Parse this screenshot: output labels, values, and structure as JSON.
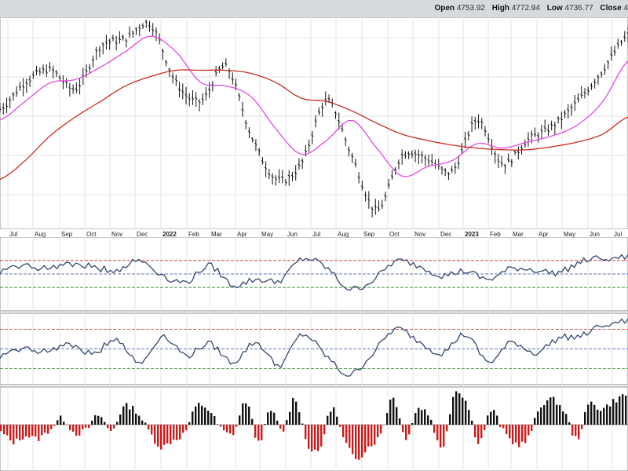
{
  "ohlc": {
    "open_label": "Open",
    "open": "4753.92",
    "high_label": "High",
    "high": "4772.94",
    "low_label": "Low",
    "low": "4736.77",
    "close_label": "Close",
    "close": "4"
  },
  "chart_data": [
    {
      "type": "line",
      "panel": "price",
      "x_tick_labels": [
        "Jul",
        "Aug",
        "Sep",
        "Oct",
        "Nov",
        "Dec",
        "2022",
        "Feb",
        "Mar",
        "Apr",
        "May",
        "Jun",
        "Jul",
        "Aug",
        "Sep",
        "Oct",
        "Nov",
        "Dec",
        "2023",
        "Feb",
        "Mar",
        "Apr",
        "May",
        "Jun",
        "Jul"
      ],
      "bold_tick_labels": [
        "2022",
        "2023"
      ],
      "x": [
        "2021-07",
        "2021-08",
        "2021-09",
        "2021-10",
        "2021-11",
        "2021-12",
        "2022-01",
        "2022-02",
        "2022-03",
        "2022-04",
        "2022-05",
        "2022-06",
        "2022-07",
        "2022-08",
        "2022-09",
        "2022-10",
        "2022-11",
        "2022-12",
        "2023-01",
        "2023-02",
        "2023-03",
        "2023-04",
        "2023-05",
        "2023-06",
        "2023-07",
        "2023-08"
      ],
      "series": [
        {
          "style": "price bars",
          "color": "#000000",
          "values": [
            4250,
            4420,
            4500,
            4380,
            4650,
            4700,
            4790,
            4420,
            4300,
            4520,
            4080,
            3800,
            3900,
            4300,
            3950,
            3600,
            3950,
            3930,
            3850,
            4180,
            3900,
            4050,
            4140,
            4300,
            4500,
            4720
          ]
        },
        {
          "style": "short moving average",
          "color": "#e04be0",
          "values": [
            4180,
            4300,
            4420,
            4440,
            4520,
            4620,
            4720,
            4620,
            4420,
            4400,
            4330,
            4120,
            3960,
            4050,
            4180,
            4000,
            3820,
            3880,
            3920,
            4030,
            4000,
            4040,
            4080,
            4150,
            4300,
            4560
          ]
        },
        {
          "style": "long moving average",
          "color": "#cc2a22",
          "values": [
            3800,
            3920,
            4080,
            4200,
            4300,
            4400,
            4460,
            4500,
            4500,
            4500,
            4480,
            4420,
            4320,
            4300,
            4240,
            4160,
            4090,
            4050,
            4020,
            4000,
            3990,
            3990,
            4010,
            4040,
            4090,
            4200
          ]
        }
      ],
      "grid": true
    },
    {
      "type": "line",
      "panel": "oscillator-1",
      "reference_lines": [
        70,
        50,
        30
      ],
      "reference_colors": [
        "#cc2a22",
        "#3344aa",
        "#2a8a2a"
      ],
      "ylim": [
        0,
        100
      ],
      "series": [
        {
          "color": "#34486e",
          "values": [
            55,
            62,
            58,
            66,
            60,
            56,
            70,
            48,
            38,
            62,
            34,
            42,
            40,
            72,
            60,
            28,
            40,
            68,
            62,
            48,
            54,
            42,
            58,
            56,
            52,
            68,
            74,
            74
          ]
        }
      ],
      "grid": true
    },
    {
      "type": "line",
      "panel": "oscillator-2",
      "reference_lines": [
        80,
        50,
        20
      ],
      "reference_colors": [
        "#cc2a22",
        "#3344aa",
        "#2a8a2a"
      ],
      "ylim": [
        0,
        100
      ],
      "series": [
        {
          "color": "#34486e",
          "values": [
            40,
            50,
            46,
            58,
            42,
            66,
            28,
            70,
            40,
            58,
            30,
            60,
            25,
            72,
            40,
            10,
            42,
            80,
            62,
            44,
            72,
            30,
            60,
            44,
            66,
            70,
            88,
            92
          ]
        }
      ],
      "grid": true
    },
    {
      "type": "bar",
      "panel": "histogram",
      "colors": {
        "positive": "#111111",
        "negative": "#cc1a1a"
      },
      "values": [
        -10,
        -22,
        -14,
        -18,
        -6,
        8,
        -10,
        -6,
        12,
        -8,
        22,
        18,
        -6,
        -28,
        -20,
        -10,
        24,
        18,
        -6,
        -10,
        30,
        -22,
        18,
        -8,
        34,
        -24,
        -32,
        22,
        -20,
        -42,
        -28,
        -12,
        36,
        -16,
        20,
        10,
        -30,
        40,
        28,
        -22,
        18,
        -8,
        -24,
        -18,
        22,
        32,
        16,
        -18,
        26,
        20,
        30,
        38
      ]
    }
  ]
}
